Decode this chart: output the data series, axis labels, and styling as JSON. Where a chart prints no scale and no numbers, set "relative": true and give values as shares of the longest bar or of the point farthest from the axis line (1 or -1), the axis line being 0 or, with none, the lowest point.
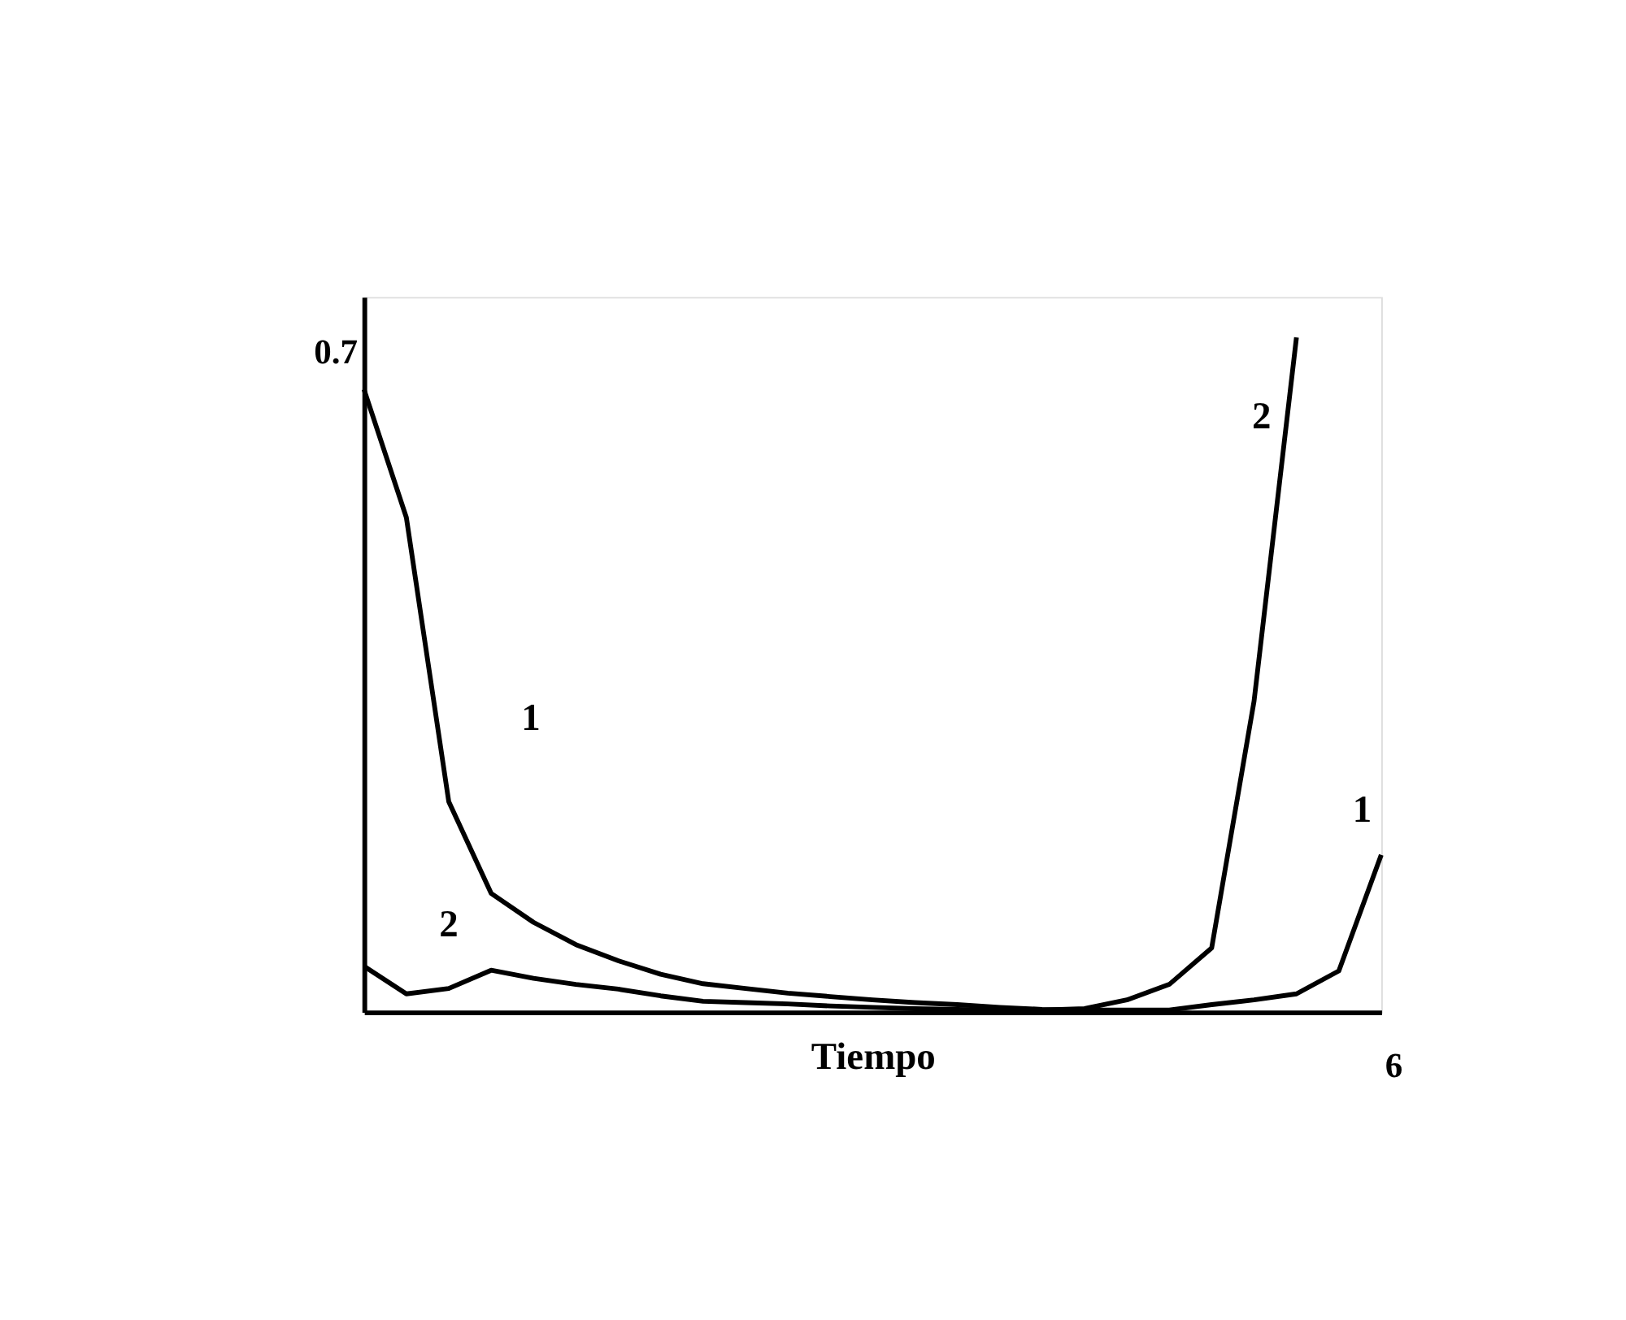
{
  "chart_data": {
    "type": "line",
    "xlabel": "Tiempo",
    "relative": true,
    "annotations": [
      "0.7",
      "6"
    ],
    "marker": "none",
    "line_style": "solid",
    "categories": [
      null,
      null,
      null,
      null,
      null,
      null,
      null,
      null,
      null,
      null,
      null,
      null,
      null,
      null,
      null,
      null,
      null,
      null,
      null,
      null,
      null,
      null,
      null,
      null,
      null
    ],
    "series": [
      {
        "name": "1",
        "color": "#000000",
        "values": [
          0.923,
          0.733,
          0.312,
          0.176,
          0.133,
          0.1,
          0.076,
          0.056,
          0.042,
          0.035,
          0.028,
          0.023,
          0.018,
          0.014,
          0.011,
          0.007,
          0.004,
          0.003,
          0.003,
          0.003,
          0.011,
          0.018,
          0.027,
          0.061,
          0.233
        ]
      },
      {
        "name": "2",
        "color": "#000000",
        "values": [
          0.068,
          0.027,
          0.035,
          0.062,
          0.05,
          0.041,
          0.034,
          0.024,
          0.016,
          0.014,
          0.012,
          0.009,
          0.007,
          0.005,
          0.004,
          0.003,
          0.003,
          0.005,
          0.018,
          0.041,
          0.095,
          0.461,
          1.0,
          null,
          null
        ]
      }
    ]
  }
}
